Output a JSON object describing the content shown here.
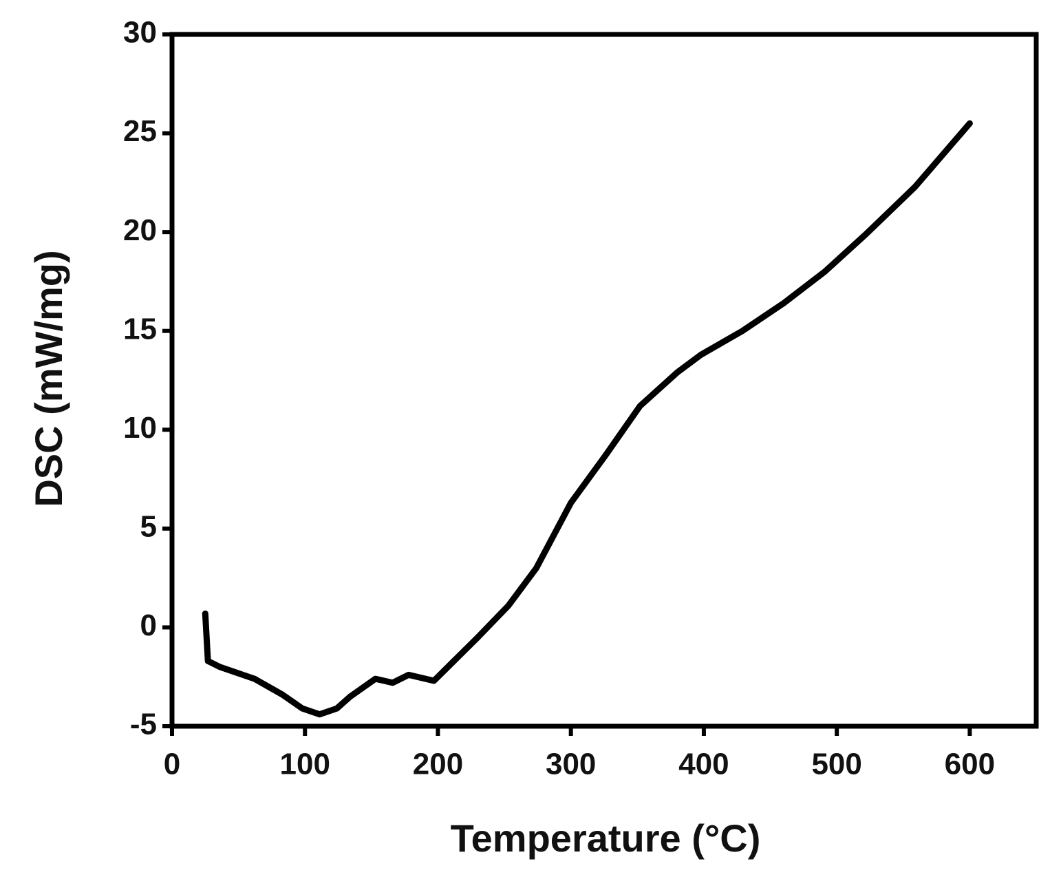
{
  "chart_data": {
    "type": "line",
    "xlabel": "Temperature (°C)",
    "ylabel": "DSC (mW/mg)",
    "xlim": [
      0,
      650
    ],
    "xticks": [
      0,
      100,
      200,
      300,
      400,
      500,
      600
    ],
    "ylim": [
      -5,
      30
    ],
    "yticks": [
      -5,
      0,
      5,
      10,
      15,
      20,
      25,
      30
    ],
    "x": [
      25,
      27,
      36,
      62,
      83,
      98,
      111,
      124,
      134,
      153,
      166,
      178,
      197,
      212,
      230,
      253,
      274,
      300,
      326,
      352,
      380,
      398,
      429,
      460,
      491,
      522,
      559,
      600
    ],
    "series": [
      {
        "color": "#000000",
        "values": [
          0.7,
          -1.7,
          -2.0,
          -2.6,
          -3.4,
          -4.1,
          -4.4,
          -4.1,
          -3.5,
          -2.6,
          -2.8,
          -2.4,
          -2.7,
          -1.7,
          -0.5,
          1.1,
          3.0,
          6.3,
          8.7,
          11.2,
          12.9,
          13.8,
          15.0,
          16.4,
          18.0,
          19.9,
          22.3,
          25.5
        ]
      }
    ]
  }
}
